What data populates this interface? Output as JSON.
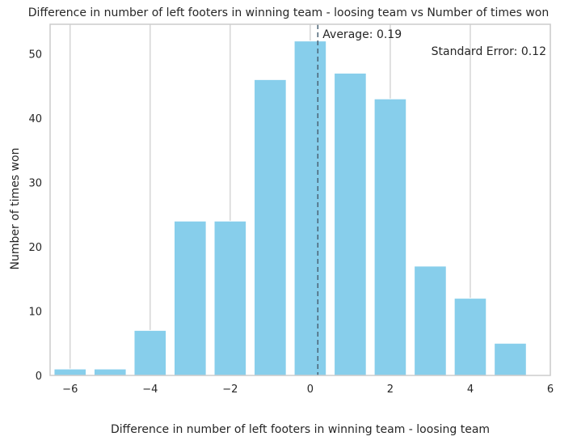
{
  "chart_data": {
    "type": "bar",
    "title": "Difference in number of left footers in winning team - loosing team vs Number of times won",
    "xlabel": "Difference in number of left footers in winning team - loosing team",
    "ylabel": "Number of times won",
    "x": [
      -6,
      -5,
      -4,
      -3,
      -2,
      -1,
      0,
      1,
      2,
      3,
      4,
      5
    ],
    "values": [
      1,
      1,
      7,
      24,
      24,
      46,
      52,
      47,
      43,
      17,
      12,
      5
    ],
    "xlim": [
      -6.5,
      6
    ],
    "ylim": [
      0,
      54.6
    ],
    "xticks": [
      -6,
      -4,
      -2,
      0,
      2,
      4,
      6
    ],
    "xtick_labels": [
      "−6",
      "−4",
      "−2",
      "0",
      "2",
      "4",
      "6"
    ],
    "yticks": [
      0,
      10,
      20,
      30,
      40,
      50
    ],
    "ytick_labels": [
      "0",
      "10",
      "20",
      "30",
      "40",
      "50"
    ],
    "average": 0.19,
    "annotations": {
      "average_label": "Average: 0.19",
      "stderr_label": "Standard Error: 0.12"
    },
    "grid": "x-axis vertical gridlines",
    "colors": {
      "bar": "#87ceeb",
      "grid": "#cccccc",
      "average_line": "#4a6274",
      "axes_edge": "#cccccc",
      "text": "#262626"
    }
  }
}
